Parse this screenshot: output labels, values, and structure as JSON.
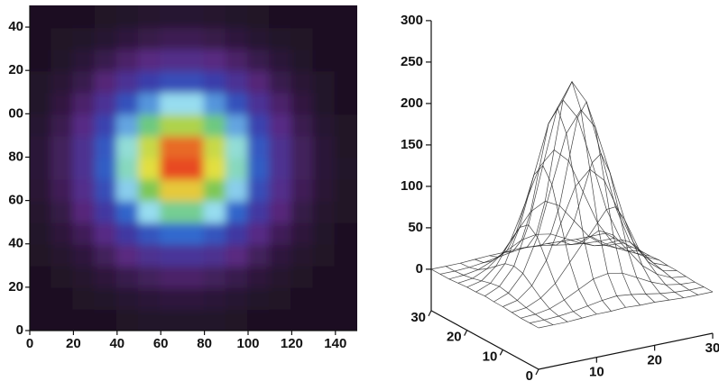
{
  "chart_data": [
    {
      "type": "heatmap",
      "x": [
        5,
        15,
        25,
        35,
        45,
        55,
        65,
        75,
        85,
        95,
        105,
        115,
        125,
        135,
        145
      ],
      "y": [
        5,
        15,
        25,
        35,
        45,
        55,
        65,
        75,
        85,
        95,
        105,
        115,
        125,
        135,
        145
      ],
      "z": [
        [
          10,
          10,
          11,
          11,
          12,
          13,
          13,
          13,
          13,
          12,
          11,
          11,
          10,
          10,
          10
        ],
        [
          10,
          11,
          12,
          14,
          16,
          18,
          20,
          20,
          18,
          16,
          14,
          12,
          11,
          10,
          10
        ],
        [
          11,
          12,
          15,
          19,
          25,
          30,
          34,
          34,
          30,
          25,
          19,
          15,
          12,
          11,
          10
        ],
        [
          12,
          15,
          20,
          30,
          42,
          54,
          61,
          61,
          54,
          42,
          30,
          20,
          15,
          12,
          11
        ],
        [
          13,
          19,
          29,
          46,
          68,
          90,
          104,
          104,
          90,
          68,
          46,
          29,
          19,
          13,
          11
        ],
        [
          15,
          23,
          40,
          67,
          101,
          136,
          158,
          158,
          136,
          101,
          67,
          40,
          23,
          15,
          12
        ],
        [
          17,
          28,
          50,
          85,
          132,
          178,
          207,
          207,
          178,
          132,
          85,
          50,
          28,
          17,
          12
        ],
        [
          18,
          30,
          55,
          96,
          149,
          201,
          234,
          234,
          201,
          149,
          96,
          55,
          30,
          18,
          13
        ],
        [
          18,
          30,
          54,
          93,
          144,
          195,
          227,
          227,
          195,
          144,
          93,
          54,
          30,
          18,
          12
        ],
        [
          16,
          26,
          46,
          78,
          121,
          162,
          189,
          189,
          162,
          121,
          78,
          46,
          26,
          16,
          12
        ],
        [
          14,
          21,
          35,
          58,
          88,
          117,
          136,
          136,
          117,
          88,
          58,
          35,
          21,
          14,
          11
        ],
        [
          13,
          17,
          25,
          39,
          57,
          74,
          86,
          86,
          74,
          57,
          39,
          25,
          17,
          13,
          11
        ],
        [
          11,
          13,
          18,
          25,
          34,
          43,
          49,
          49,
          43,
          34,
          25,
          18,
          13,
          11,
          10
        ],
        [
          11,
          12,
          13,
          16,
          20,
          24,
          27,
          27,
          24,
          20,
          16,
          13,
          12,
          11,
          10
        ],
        [
          10,
          11,
          11,
          12,
          14,
          15,
          16,
          16,
          15,
          14,
          12,
          11,
          11,
          10,
          10
        ]
      ],
      "colormap": [
        "#1c1020",
        "#5a2a80",
        "#3b3caa",
        "#2f6cd0",
        "#9ee4f2",
        "#5cc05a",
        "#e6e040",
        "#e84a20"
      ],
      "xlim": [
        0,
        150
      ],
      "ylim": [
        0,
        150
      ],
      "xticks": [
        0,
        20,
        40,
        60,
        80,
        100,
        120,
        140
      ],
      "yticks": [
        0,
        20,
        40,
        60,
        80,
        {
          "value": 100,
          "label": "00"
        },
        {
          "value": 120,
          "label": "20"
        },
        {
          "value": 140,
          "label": "40"
        }
      ]
    },
    {
      "type": "surface3d",
      "x": [
        0,
        2.5,
        5,
        7.5,
        10,
        12.5,
        15,
        17.5,
        20,
        22.5,
        25,
        27.5,
        30
      ],
      "y": [
        0,
        2.5,
        5,
        7.5,
        10,
        12.5,
        15,
        17.5,
        20,
        22.5,
        25,
        27.5,
        30
      ],
      "z": [
        [
          0,
          0,
          0,
          1,
          2,
          2,
          3,
          2,
          2,
          1,
          0,
          0,
          0
        ],
        [
          0,
          0,
          1,
          3,
          6,
          9,
          11,
          9,
          6,
          3,
          1,
          0,
          0
        ],
        [
          0,
          1,
          4,
          11,
          20,
          29,
          32,
          29,
          20,
          11,
          4,
          1,
          0
        ],
        [
          1,
          3,
          11,
          25,
          47,
          69,
          78,
          69,
          47,
          25,
          11,
          3,
          1
        ],
        [
          2,
          6,
          20,
          47,
          88,
          129,
          146,
          129,
          88,
          47,
          20,
          6,
          2
        ],
        [
          2,
          9,
          29,
          69,
          129,
          187,
          212,
          187,
          129,
          69,
          29,
          9,
          2
        ],
        [
          3,
          11,
          32,
          78,
          146,
          212,
          240,
          212,
          146,
          78,
          32,
          11,
          3
        ],
        [
          2,
          9,
          29,
          69,
          129,
          187,
          212,
          187,
          129,
          69,
          29,
          9,
          2
        ],
        [
          2,
          6,
          20,
          47,
          88,
          129,
          146,
          129,
          88,
          47,
          20,
          6,
          2
        ],
        [
          1,
          3,
          11,
          25,
          47,
          69,
          78,
          69,
          47,
          25,
          11,
          3,
          1
        ],
        [
          0,
          1,
          4,
          11,
          20,
          29,
          32,
          29,
          20,
          11,
          4,
          1,
          0
        ],
        [
          0,
          0,
          1,
          3,
          6,
          9,
          11,
          9,
          6,
          3,
          1,
          0,
          0
        ],
        [
          0,
          0,
          0,
          1,
          2,
          2,
          3,
          2,
          2,
          1,
          0,
          0,
          0
        ]
      ],
      "color": "#222222",
      "xlim": [
        0,
        30
      ],
      "ylim": [
        0,
        30
      ],
      "zlim": [
        -50,
        300
      ],
      "xticks": [
        10,
        20,
        30
      ],
      "yticks": [
        0,
        10,
        20,
        30
      ],
      "zticks": [
        0,
        50,
        100,
        150,
        200,
        250,
        300
      ]
    }
  ]
}
